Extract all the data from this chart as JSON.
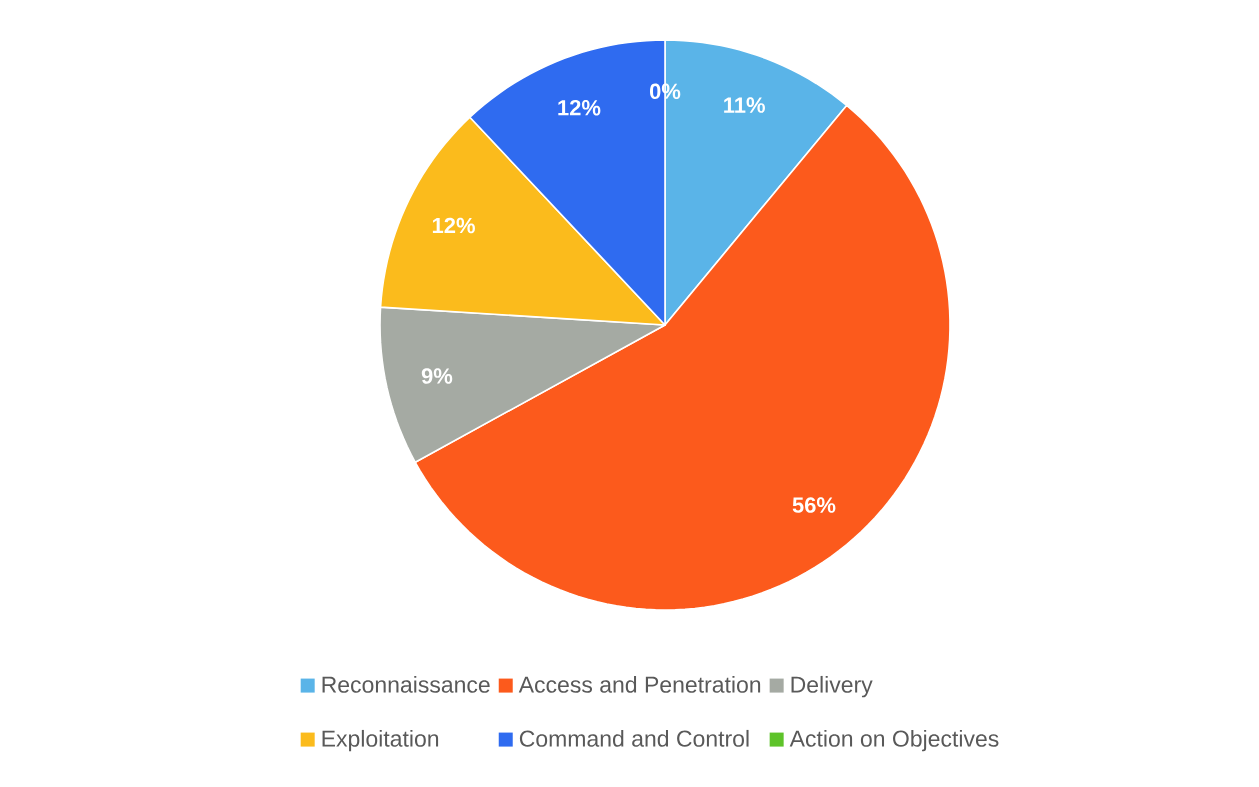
{
  "chart_data": {
    "type": "pie",
    "categories": [
      "Reconnaissance",
      "Access and Penetration",
      "Delivery",
      "Exploitation",
      "Command and Control",
      "Action on Objectives"
    ],
    "values": [
      11,
      56,
      9,
      12,
      12,
      0
    ],
    "value_labels": [
      "11%",
      "56%",
      "9%",
      "12%",
      "12%",
      "0%"
    ],
    "colors": [
      "#5ab4e8",
      "#fc5a1c",
      "#a5aaa3",
      "#fbbb1c",
      "#2f6bf0",
      "#5ec32a"
    ],
    "legend": "bottom"
  }
}
